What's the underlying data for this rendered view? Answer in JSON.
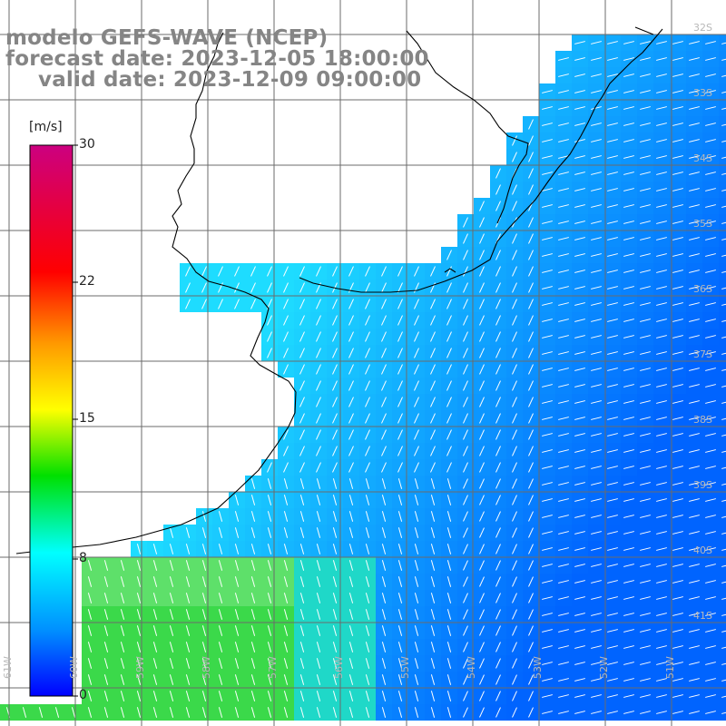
{
  "title": {
    "line1": "modelo GEFS-WAVE (NCEP)",
    "line2": "forecast date: 2023-12-05 18:00:00",
    "line3": "valid date: 2023-12-09 09:00:00"
  },
  "colorbar": {
    "unit": "[m/s]",
    "ticks": [
      "30",
      "22",
      "15",
      "8",
      "0"
    ]
  },
  "lat_labels": [
    "32S",
    "33S",
    "34S",
    "35S",
    "36S",
    "37S",
    "38S",
    "39S",
    "40S",
    "41S"
  ],
  "lon_labels": [
    "61W",
    "60W",
    "59W",
    "58W",
    "57W",
    "56W",
    "55W",
    "54W",
    "53W",
    "52W",
    "51W"
  ],
  "colors": {
    "title": "#858585",
    "grid": "#6b6b6b",
    "coast": "#000000",
    "arrow": "#ffffff"
  }
}
